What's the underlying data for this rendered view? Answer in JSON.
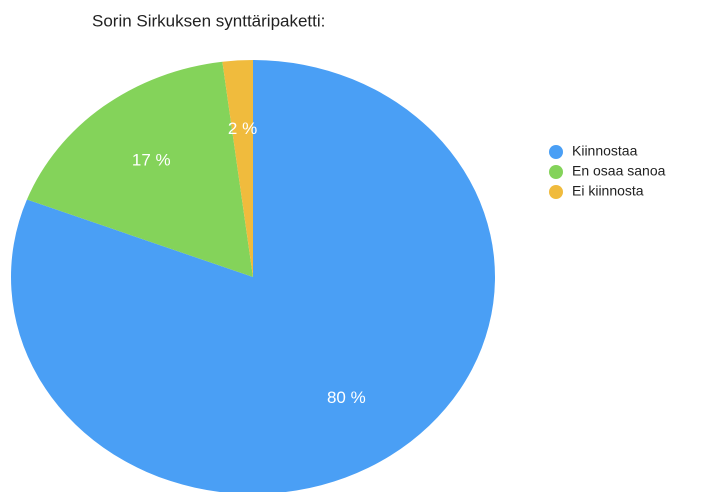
{
  "chart_data": {
    "type": "pie",
    "title": "Sorin Sirkuksen synttäripaketti:",
    "categories": [
      "Kiinnostaa",
      "En osaa sanoa",
      "Ei kiinnosta"
    ],
    "values": [
      80,
      17,
      2
    ],
    "value_labels": [
      "80 %",
      "17 %",
      "2 %"
    ],
    "colors": [
      "#4a9ff5",
      "#84d35a",
      "#f0bb3d"
    ],
    "legend": "right"
  }
}
